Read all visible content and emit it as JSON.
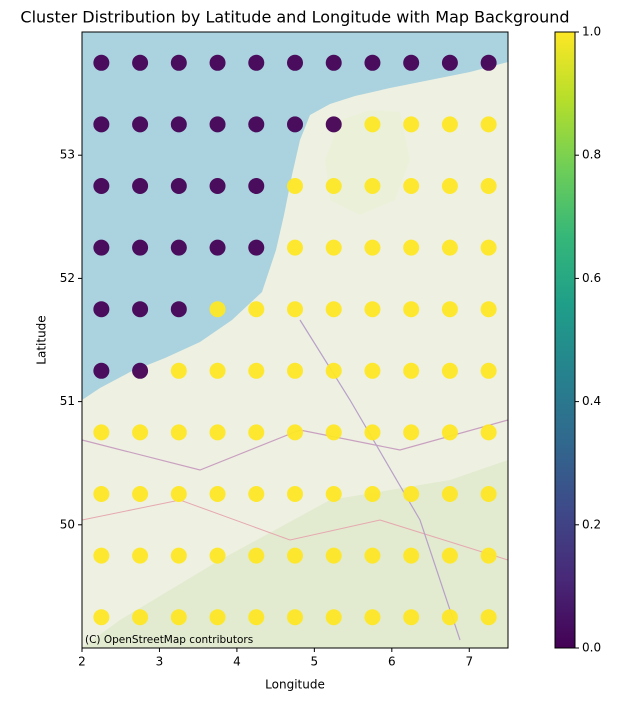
{
  "chart_data": {
    "type": "scatter",
    "title": "Cluster Distribution by Latitude and Longitude with Map Background",
    "x_label": "Longitude",
    "y_label": "Latitude",
    "attribution": "(C) OpenStreetMap contributors",
    "x": [
      2.25,
      2.75,
      3.25,
      3.75,
      4.25,
      4.75,
      5.25,
      5.75,
      6.25,
      6.75,
      7.25,
      2.25,
      2.75,
      3.25,
      3.75,
      4.25,
      4.75,
      5.25,
      5.75,
      6.25,
      6.75,
      7.25,
      2.25,
      2.75,
      3.25,
      3.75,
      4.25,
      4.75,
      5.25,
      5.75,
      6.25,
      6.75,
      7.25,
      2.25,
      2.75,
      3.25,
      3.75,
      4.25,
      4.75,
      5.25,
      5.75,
      6.25,
      6.75,
      7.25,
      2.25,
      2.75,
      3.25,
      3.75,
      4.25,
      4.75,
      5.25,
      5.75,
      6.25,
      6.75,
      7.25,
      2.25,
      2.75,
      3.25,
      3.75,
      4.25,
      4.75,
      5.25,
      5.75,
      6.25,
      6.75,
      7.25,
      2.25,
      2.75,
      3.25,
      3.75,
      4.25,
      4.75,
      5.25,
      5.75,
      6.25,
      6.75,
      7.25,
      2.25,
      2.75,
      3.25,
      3.75,
      4.25,
      4.75,
      5.25,
      5.75,
      6.25,
      6.75,
      7.25,
      2.25,
      2.75,
      3.25,
      3.75,
      4.25,
      4.75,
      5.25,
      5.75,
      6.25,
      6.75,
      7.25,
      2.25,
      2.75,
      3.25,
      3.75,
      4.25,
      4.75,
      5.25,
      5.75,
      6.25,
      6.75,
      7.25
    ],
    "y": [
      53.75,
      53.75,
      53.75,
      53.75,
      53.75,
      53.75,
      53.75,
      53.75,
      53.75,
      53.75,
      53.75,
      53.25,
      53.25,
      53.25,
      53.25,
      53.25,
      53.25,
      53.25,
      53.25,
      53.25,
      53.25,
      53.25,
      52.75,
      52.75,
      52.75,
      52.75,
      52.75,
      52.75,
      52.75,
      52.75,
      52.75,
      52.75,
      52.75,
      52.25,
      52.25,
      52.25,
      52.25,
      52.25,
      52.25,
      52.25,
      52.25,
      52.25,
      52.25,
      52.25,
      51.75,
      51.75,
      51.75,
      51.75,
      51.75,
      51.75,
      51.75,
      51.75,
      51.75,
      51.75,
      51.75,
      51.25,
      51.25,
      51.25,
      51.25,
      51.25,
      51.25,
      51.25,
      51.25,
      51.25,
      51.25,
      51.25,
      50.75,
      50.75,
      50.75,
      50.75,
      50.75,
      50.75,
      50.75,
      50.75,
      50.75,
      50.75,
      50.75,
      50.25,
      50.25,
      50.25,
      50.25,
      50.25,
      50.25,
      50.25,
      50.25,
      50.25,
      50.25,
      50.25,
      49.75,
      49.75,
      49.75,
      49.75,
      49.75,
      49.75,
      49.75,
      49.75,
      49.75,
      49.75,
      49.75,
      49.25,
      49.25,
      49.25,
      49.25,
      49.25,
      49.25,
      49.25,
      49.25,
      49.25,
      49.25,
      49.25
    ],
    "cluster": [
      0,
      0,
      0,
      0,
      0,
      0,
      0,
      0,
      0,
      0,
      0,
      0,
      0,
      0,
      0,
      0,
      0,
      0,
      1,
      1,
      1,
      1,
      0,
      0,
      0,
      0,
      0,
      1,
      1,
      1,
      1,
      1,
      1,
      0,
      0,
      0,
      0,
      0,
      1,
      1,
      1,
      1,
      1,
      1,
      0,
      0,
      0,
      1,
      1,
      1,
      1,
      1,
      1,
      1,
      1,
      0,
      0,
      1,
      1,
      1,
      1,
      1,
      1,
      1,
      1,
      1,
      1,
      1,
      1,
      1,
      1,
      1,
      1,
      1,
      1,
      1,
      1,
      1,
      1,
      1,
      1,
      1,
      1,
      1,
      1,
      1,
      1,
      1,
      1,
      1,
      1,
      1,
      1,
      1,
      1,
      1,
      1,
      1,
      1,
      1,
      1,
      1,
      1,
      1,
      1,
      1,
      1,
      1,
      1,
      1
    ],
    "colormap": "viridis",
    "xlim": [
      2,
      7.5
    ],
    "xticks": [
      2,
      3,
      4,
      5,
      6,
      7
    ],
    "ylim": [
      49,
      54
    ],
    "yticks": [
      50,
      51,
      52,
      53
    ],
    "colorbar_lim": [
      0,
      1
    ],
    "colorbar_ticks": [
      {
        "value": 0,
        "label": "0.0"
      },
      {
        "value": 0.2,
        "label": "0.2"
      },
      {
        "value": 0.4,
        "label": "0.4"
      },
      {
        "value": 0.6,
        "label": "0.6"
      },
      {
        "value": 0.8,
        "label": "0.8"
      },
      {
        "value": 1,
        "label": "1.0"
      }
    ]
  }
}
